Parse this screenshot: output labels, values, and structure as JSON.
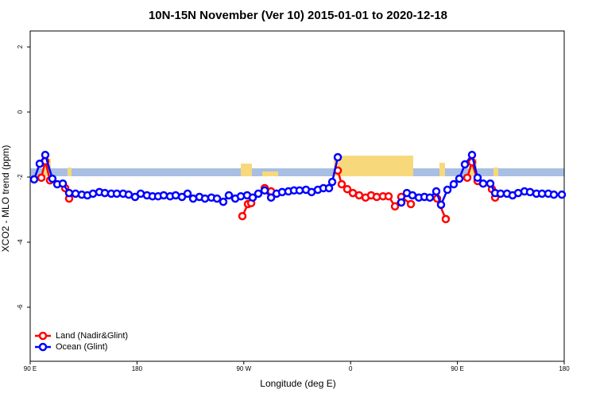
{
  "chart_data": {
    "type": "line",
    "title": "10N-15N November (Ver 10)   2015-01-01 to 2020-12-18",
    "x_label": "Longitude (deg E)",
    "y_label": "XCO2 - MLO trend (ppm)",
    "xlim": [
      90,
      540
    ],
    "ylim": [
      -7.66,
      2.49
    ],
    "xticks": [
      {
        "value": 90,
        "label": "90 E"
      },
      180,
      {
        "value": 270,
        "label": "90 W"
      },
      {
        "value": 360,
        "label": "0"
      },
      {
        "value": 450,
        "label": "90 E"
      },
      {
        "value": 540,
        "label": "180"
      }
    ],
    "yticks": [
      2,
      0,
      -2,
      -4,
      -6
    ],
    "legend": "bottom-left",
    "series": [
      {
        "name": "Land (Nadir&Glint)",
        "color": "#ff0000",
        "x": [
          99.4,
          102.7,
          106.7,
          113,
          119.5,
          122.8,
          200,
          268.8,
          273.5,
          276.2,
          282,
          287.6,
          293,
          320,
          349.2,
          352.5,
          357.2,
          361.9,
          367.2,
          372.6,
          377.3,
          382,
          387.3,
          392,
          397.4,
          402.7,
          410.8,
          420,
          432.9,
          440.2,
          450,
          458.3,
          462.3,
          467,
          473,
          479.1,
          481.8
        ],
        "values": [
          -2.02,
          -1.51,
          -2.1,
          null,
          -2.34,
          -2.66,
          null,
          -3.2,
          -2.83,
          -2.8,
          null,
          -2.34,
          -2.44,
          null,
          -1.8,
          -2.22,
          -2.37,
          -2.49,
          -2.56,
          -2.63,
          -2.56,
          -2.61,
          -2.59,
          -2.59,
          -2.9,
          -2.61,
          -2.83,
          null,
          -2.66,
          -3.29,
          null,
          -2.02,
          -1.54,
          -2.12,
          null,
          -2.37,
          -2.63
        ]
      },
      {
        "name": "Ocean (Glint)",
        "color": "#0000ff",
        "x": [
          93.3,
          98,
          102.7,
          108.7,
          112.8,
          117.5,
          122.8,
          128.2,
          133.5,
          138.2,
          142.9,
          148.3,
          152.9,
          158.3,
          163,
          168.3,
          173,
          178.4,
          183.1,
          188.4,
          193.1,
          197.8,
          202.5,
          207.9,
          212.6,
          217.9,
          222.6,
          227.3,
          232.6,
          237.3,
          242.7,
          247.4,
          252.7,
          257.4,
          262.8,
          267.5,
          272.8,
          277.5,
          282.2,
          287.6,
          293,
          297.6,
          302.3,
          307.6,
          312.3,
          317,
          322.4,
          327.1,
          332.4,
          337.1,
          341.8,
          344.5,
          349.2,
          376,
          402.7,
          407.4,
          412.1,
          417.5,
          422.2,
          426.8,
          432.2,
          436.2,
          441.6,
          446.9,
          451.6,
          456.3,
          462.3,
          467,
          471.7,
          477.7,
          481.8,
          486.4,
          491.8,
          496.5,
          501.2,
          506.5,
          511.2,
          516.6,
          521.3,
          526.6,
          531.3,
          538
        ],
        "values": [
          -2.07,
          -1.59,
          -1.32,
          -2.05,
          -2.22,
          -2.2,
          -2.49,
          -2.51,
          -2.54,
          -2.56,
          -2.51,
          -2.46,
          -2.49,
          -2.51,
          -2.51,
          -2.51,
          -2.54,
          -2.61,
          -2.51,
          -2.56,
          -2.59,
          -2.59,
          -2.56,
          -2.59,
          -2.56,
          -2.61,
          -2.51,
          -2.66,
          -2.61,
          -2.66,
          -2.63,
          -2.66,
          -2.76,
          -2.56,
          -2.66,
          -2.59,
          -2.56,
          -2.63,
          -2.51,
          -2.41,
          -2.63,
          -2.51,
          -2.46,
          -2.44,
          -2.41,
          -2.41,
          -2.39,
          -2.46,
          -2.39,
          -2.34,
          -2.34,
          -2.15,
          -1.39,
          null,
          -2.78,
          -2.49,
          -2.56,
          -2.63,
          -2.61,
          -2.63,
          -2.44,
          -2.85,
          -2.39,
          -2.22,
          -2.05,
          -1.61,
          -1.32,
          -2.02,
          -2.2,
          -2.2,
          -2.49,
          -2.51,
          -2.51,
          -2.56,
          -2.49,
          -2.44,
          -2.46,
          -2.51,
          -2.51,
          -2.51,
          -2.54,
          -2.54
        ]
      }
    ]
  }
}
